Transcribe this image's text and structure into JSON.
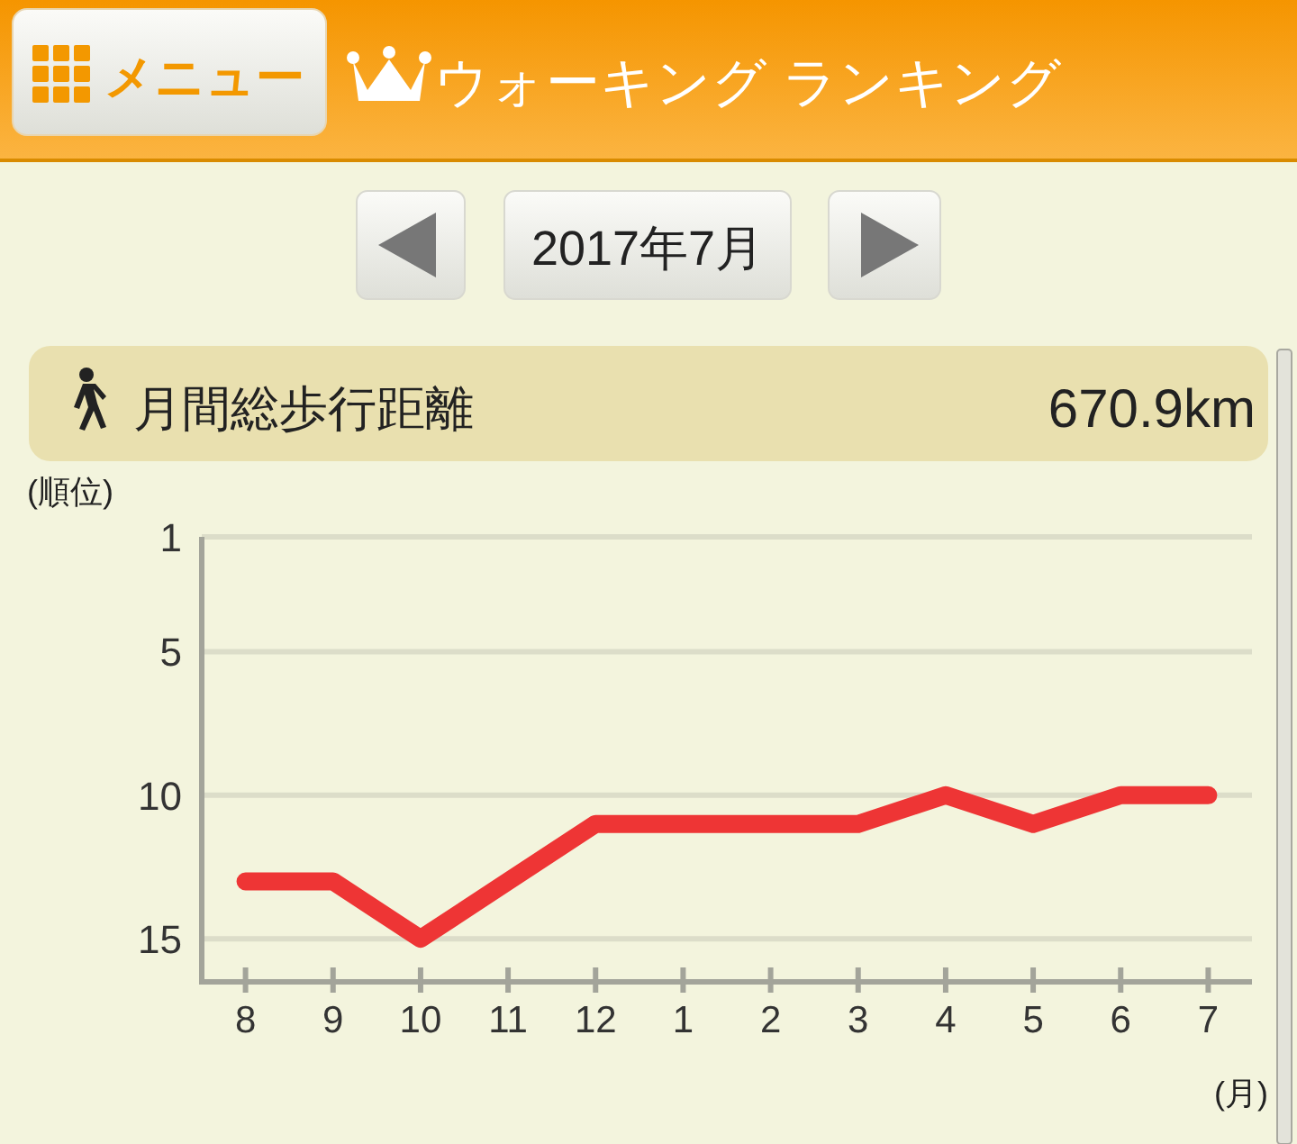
{
  "chart_data": {
    "type": "line",
    "title": "ウォーキング ランキング",
    "subtitle": "2017年7月",
    "xlabel": "(月)",
    "ylabel": "(順位)",
    "categories": [
      "8",
      "9",
      "10",
      "11",
      "12",
      "1",
      "2",
      "3",
      "4",
      "5",
      "6",
      "7"
    ],
    "series": [
      {
        "color": "#ee3535",
        "values": [
          13,
          13,
          15,
          13,
          11,
          11,
          11,
          11,
          10,
          11,
          10,
          10
        ]
      }
    ],
    "ylim": [
      16.5,
      1
    ],
    "yticks": [
      1,
      5,
      10,
      15
    ],
    "grid": "y",
    "line_style": "solid",
    "annotations": [
      "メニュー",
      "月間総歩行距離",
      "670.9km"
    ]
  }
}
